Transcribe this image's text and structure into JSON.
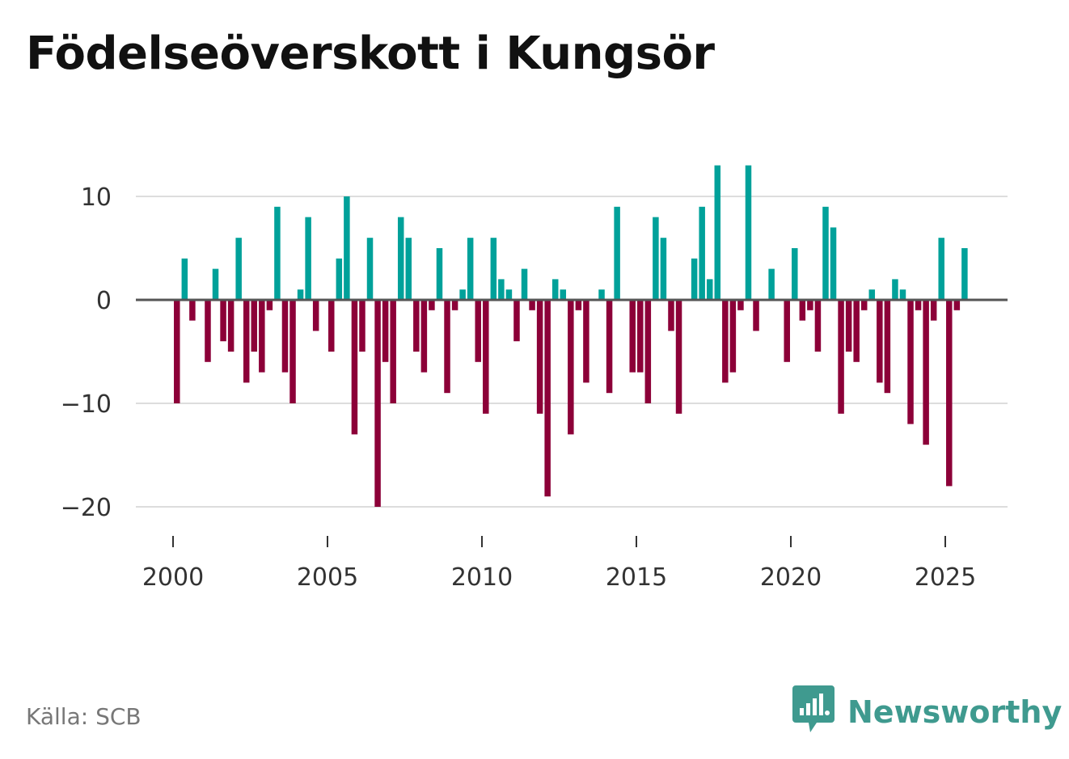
{
  "title": "Födelseöverskott i Kungsör",
  "source": "Källa: SCB",
  "brand": {
    "name": "Newsworthy",
    "icon": "newsworthy-logo-icon",
    "color": "#3f9a8f"
  },
  "colors": {
    "positive": "#00a19a",
    "negative": "#8c0038",
    "zero_line": "#555555",
    "grid": "#dddddd"
  },
  "chart_data": {
    "type": "bar",
    "title": "Födelseöverskott i Kungsör",
    "xlabel": "",
    "ylabel": "",
    "ylim": [
      -21,
      14
    ],
    "xlim": [
      1999.5,
      2026.5
    ],
    "yticks": [
      10,
      0,
      -10,
      -20
    ],
    "ytick_labels": [
      "10",
      "0",
      "−10",
      "−20"
    ],
    "xticks": [
      2000,
      2005,
      2010,
      2015,
      2020,
      2025
    ],
    "xtick_labels": [
      "2000",
      "2005",
      "2010",
      "2015",
      "2020",
      "2025"
    ],
    "grid": true,
    "period": "quarterly",
    "start_year": 2000,
    "values": [
      -10,
      4,
      -2,
      0,
      -6,
      3,
      -4,
      -5,
      6,
      -8,
      -5,
      -7,
      -1,
      9,
      -7,
      -10,
      1,
      8,
      -3,
      0,
      -5,
      4,
      10,
      -13,
      -5,
      6,
      -20,
      -6,
      -10,
      8,
      6,
      -5,
      -7,
      -1,
      5,
      -9,
      -1,
      1,
      6,
      -6,
      -11,
      6,
      2,
      1,
      -4,
      3,
      -1,
      -11,
      -19,
      2,
      1,
      -13,
      -1,
      -8,
      0,
      1,
      -9,
      9,
      0,
      -7,
      -7,
      -10,
      8,
      6,
      -3,
      -11,
      0,
      4,
      9,
      2,
      13,
      -8,
      -7,
      -1,
      13,
      -3,
      0,
      3,
      0,
      -6,
      5,
      -2,
      -1,
      -5,
      9,
      7,
      -11,
      -5,
      -6,
      -1,
      1,
      -8,
      -9,
      2,
      1,
      -12,
      -1,
      -14,
      -2,
      6,
      -18,
      -1,
      5
    ]
  }
}
